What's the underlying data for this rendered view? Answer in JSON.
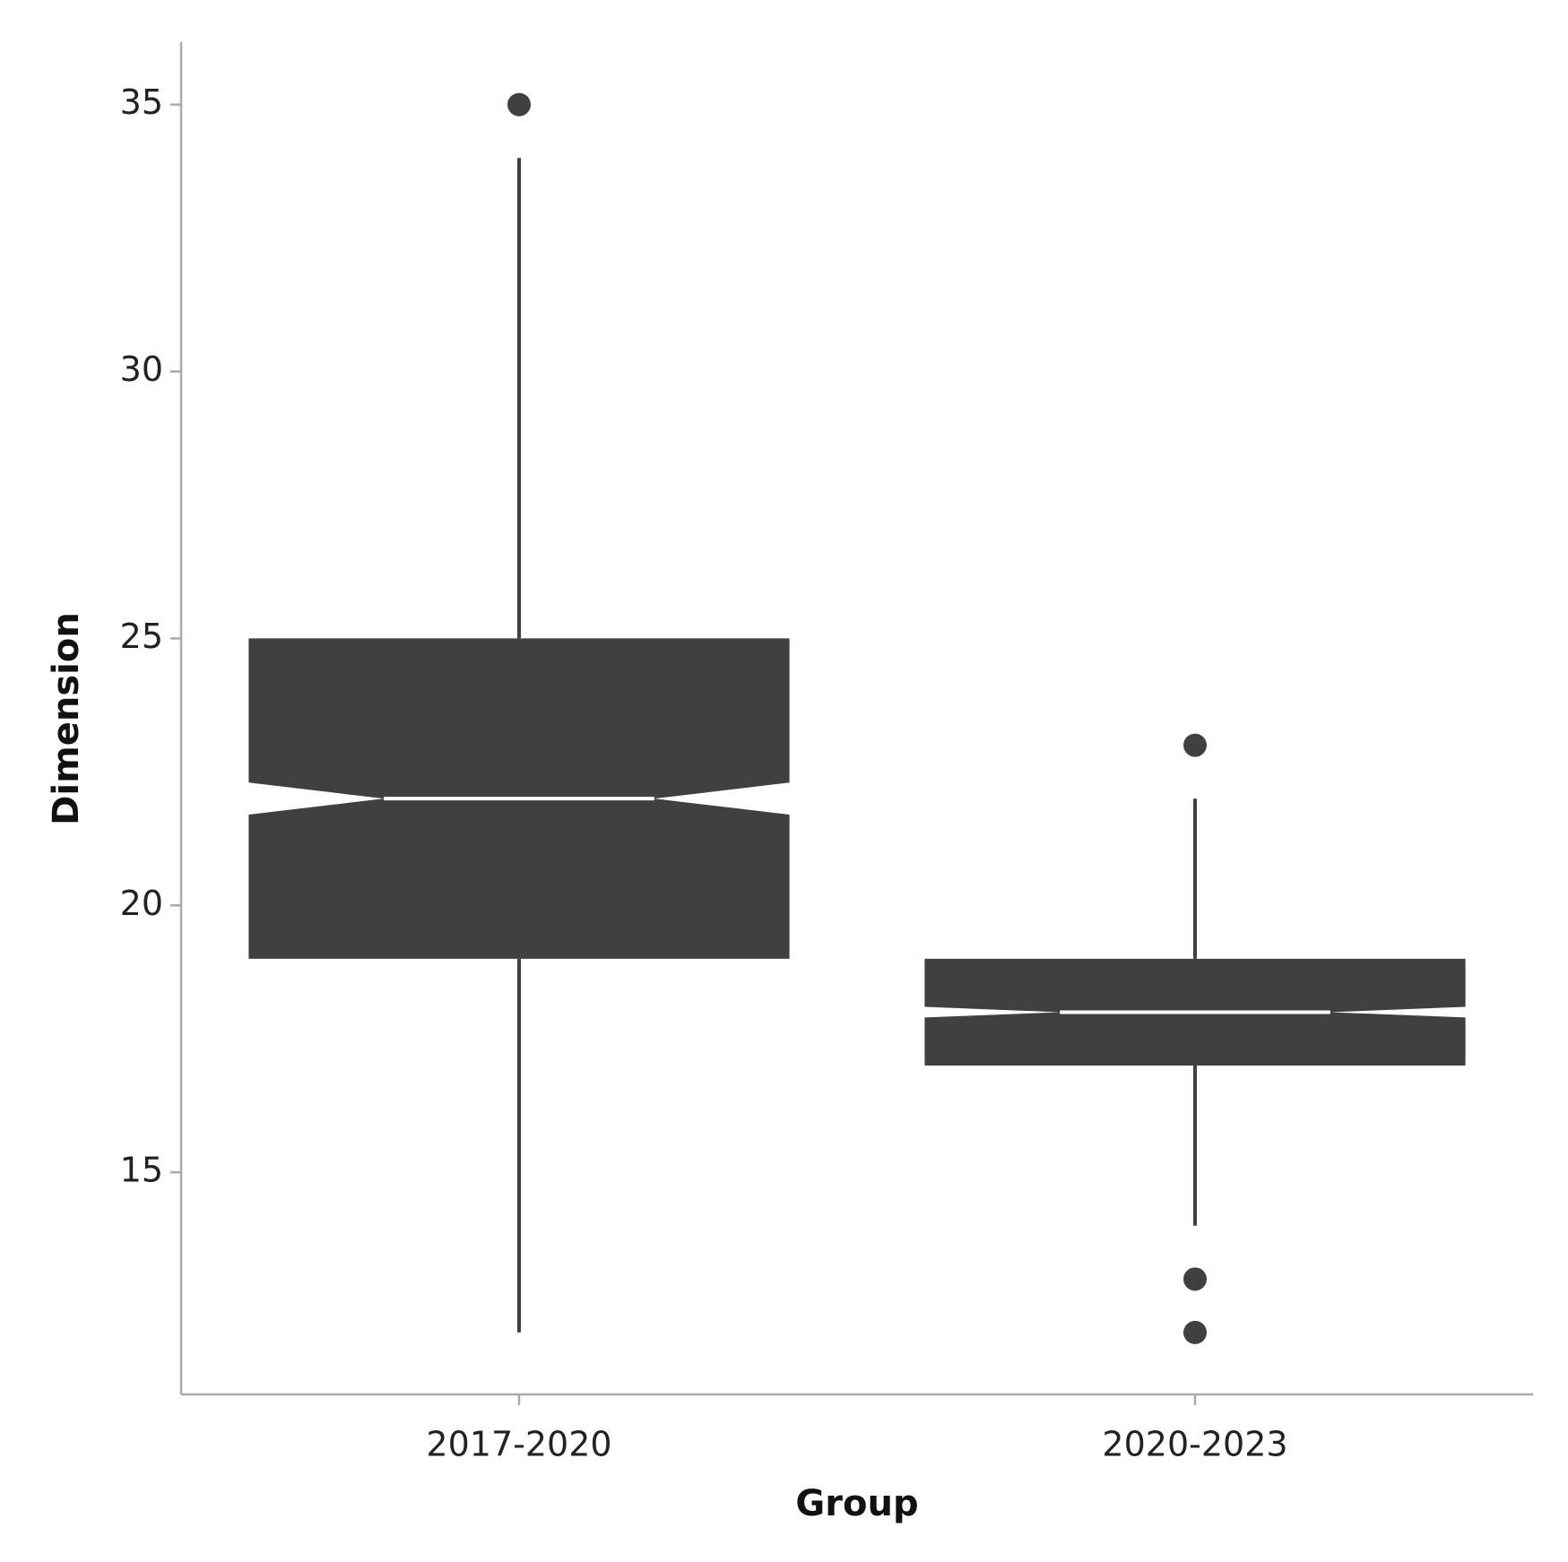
{
  "chart_data": {
    "type": "boxplot",
    "x_label": "Group",
    "y_label": "Dimension",
    "categories": [
      "2017-2020",
      "2020-2023"
    ],
    "boxes": [
      {
        "whisker_low": 12,
        "q1": 19,
        "median": 22,
        "q3": 25,
        "whisker_high": 34,
        "notch_low": 21.7,
        "notch_high": 22.3,
        "outliers": [
          35
        ]
      },
      {
        "whisker_low": 14,
        "q1": 17,
        "median": 18,
        "q3": 19,
        "whisker_high": 22,
        "notch_low": 17.9,
        "notch_high": 18.1,
        "outliers": [
          23,
          13,
          12
        ]
      }
    ],
    "color": "#404040",
    "median_color": "#ffffff",
    "ylim": [
      10.84,
      36.17
    ],
    "yticks": [
      15,
      20,
      25,
      30,
      35
    ]
  }
}
